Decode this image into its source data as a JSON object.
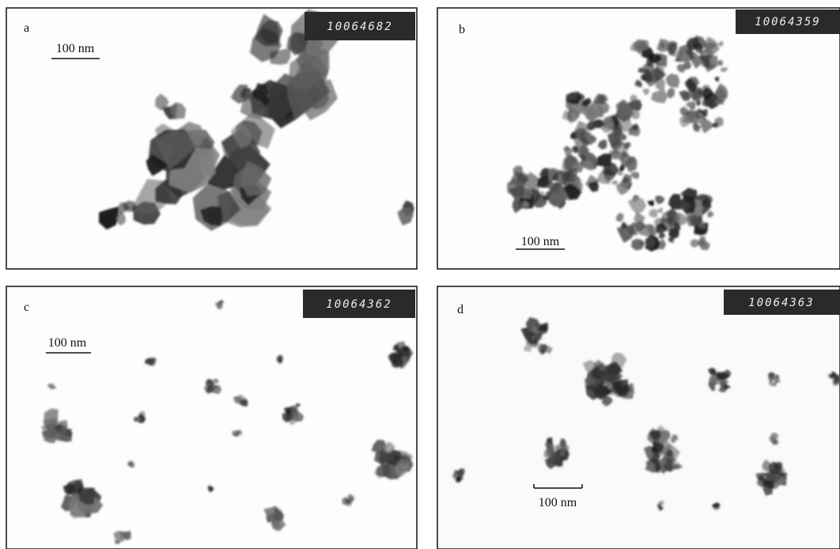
{
  "panels": [
    {
      "label": "a",
      "scale_bar": "100 nm",
      "image_id": "10064682"
    },
    {
      "label": "b",
      "scale_bar": "100 nm",
      "image_id": "10064359"
    },
    {
      "label": "c",
      "scale_bar": "100 nm",
      "image_id": "10064362"
    },
    {
      "label": "d",
      "scale_bar": "100 nm",
      "image_id": "10064363"
    }
  ]
}
